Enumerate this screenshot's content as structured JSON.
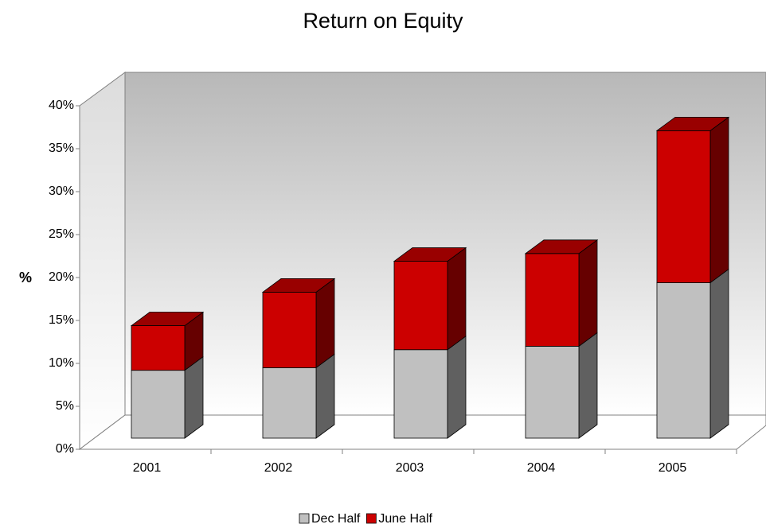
{
  "chart_data": {
    "type": "bar",
    "stacked": true,
    "title": "Return on Equity",
    "y_label": "%",
    "categories": [
      "2001",
      "2002",
      "2003",
      "2004",
      "2005"
    ],
    "series": [
      {
        "name": "Dec Half",
        "color": "#c0c0c0",
        "values": [
          7.9,
          8.2,
          10.3,
          10.7,
          18.1
        ]
      },
      {
        "name": "June Half",
        "color": "#cc0000",
        "values": [
          5.2,
          8.8,
          10.3,
          10.8,
          17.7
        ]
      }
    ],
    "ylim": [
      0,
      40
    ],
    "yticks": [
      {
        "value": 0,
        "label": "0%"
      },
      {
        "value": 5,
        "label": "5%"
      },
      {
        "value": 10,
        "label": "10%"
      },
      {
        "value": 15,
        "label": "15%"
      },
      {
        "value": 20,
        "label": "20%"
      },
      {
        "value": 25,
        "label": "25%"
      },
      {
        "value": 30,
        "label": "30%"
      },
      {
        "value": 35,
        "label": "35%"
      },
      {
        "value": 40,
        "label": "40%"
      }
    ],
    "legend": "bottom"
  }
}
